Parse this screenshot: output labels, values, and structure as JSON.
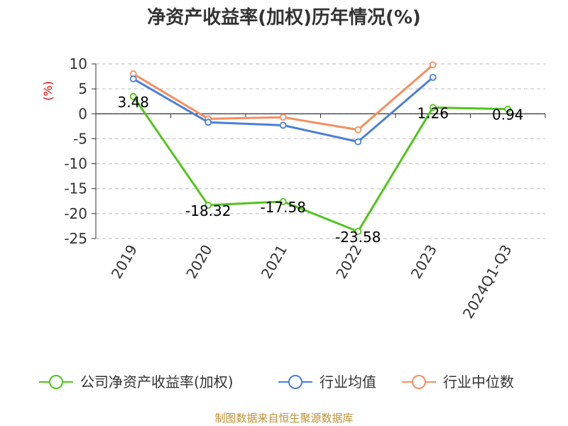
{
  "colors": {
    "company": "#52c41a",
    "average": "#4a7fd8",
    "median": "#f58e5f",
    "axis_label": "#e00000",
    "source": "#c09030"
  },
  "source_text": "制图数据来自恒生聚源数据库",
  "chart_data": {
    "type": "line",
    "title": "净资产收益率(加权)历年情况(%)",
    "ylabel": "(%)",
    "xlabel": "",
    "categories": [
      "2019",
      "2020",
      "2021",
      "2022",
      "2023",
      "2024Q1-Q3"
    ],
    "ylim": [
      -25,
      10
    ],
    "yticks": [
      10,
      5,
      0,
      -5,
      -10,
      -15,
      -20,
      -25
    ],
    "grid": true,
    "legend_position": "bottom",
    "series": [
      {
        "name": "公司净资产收益率(加权)",
        "values": [
          3.48,
          -18.32,
          -17.58,
          -23.58,
          1.26,
          0.94
        ],
        "labels": [
          "3.48",
          "-18.32",
          "-17.58",
          "-23.58",
          "1.26",
          "0.94"
        ]
      },
      {
        "name": "行业均值",
        "values": [
          7.0,
          -1.7,
          -2.3,
          -5.6,
          7.3,
          null
        ]
      },
      {
        "name": "行业中位数",
        "values": [
          8.0,
          -1.0,
          -0.7,
          -3.2,
          9.8,
          null
        ]
      }
    ]
  }
}
